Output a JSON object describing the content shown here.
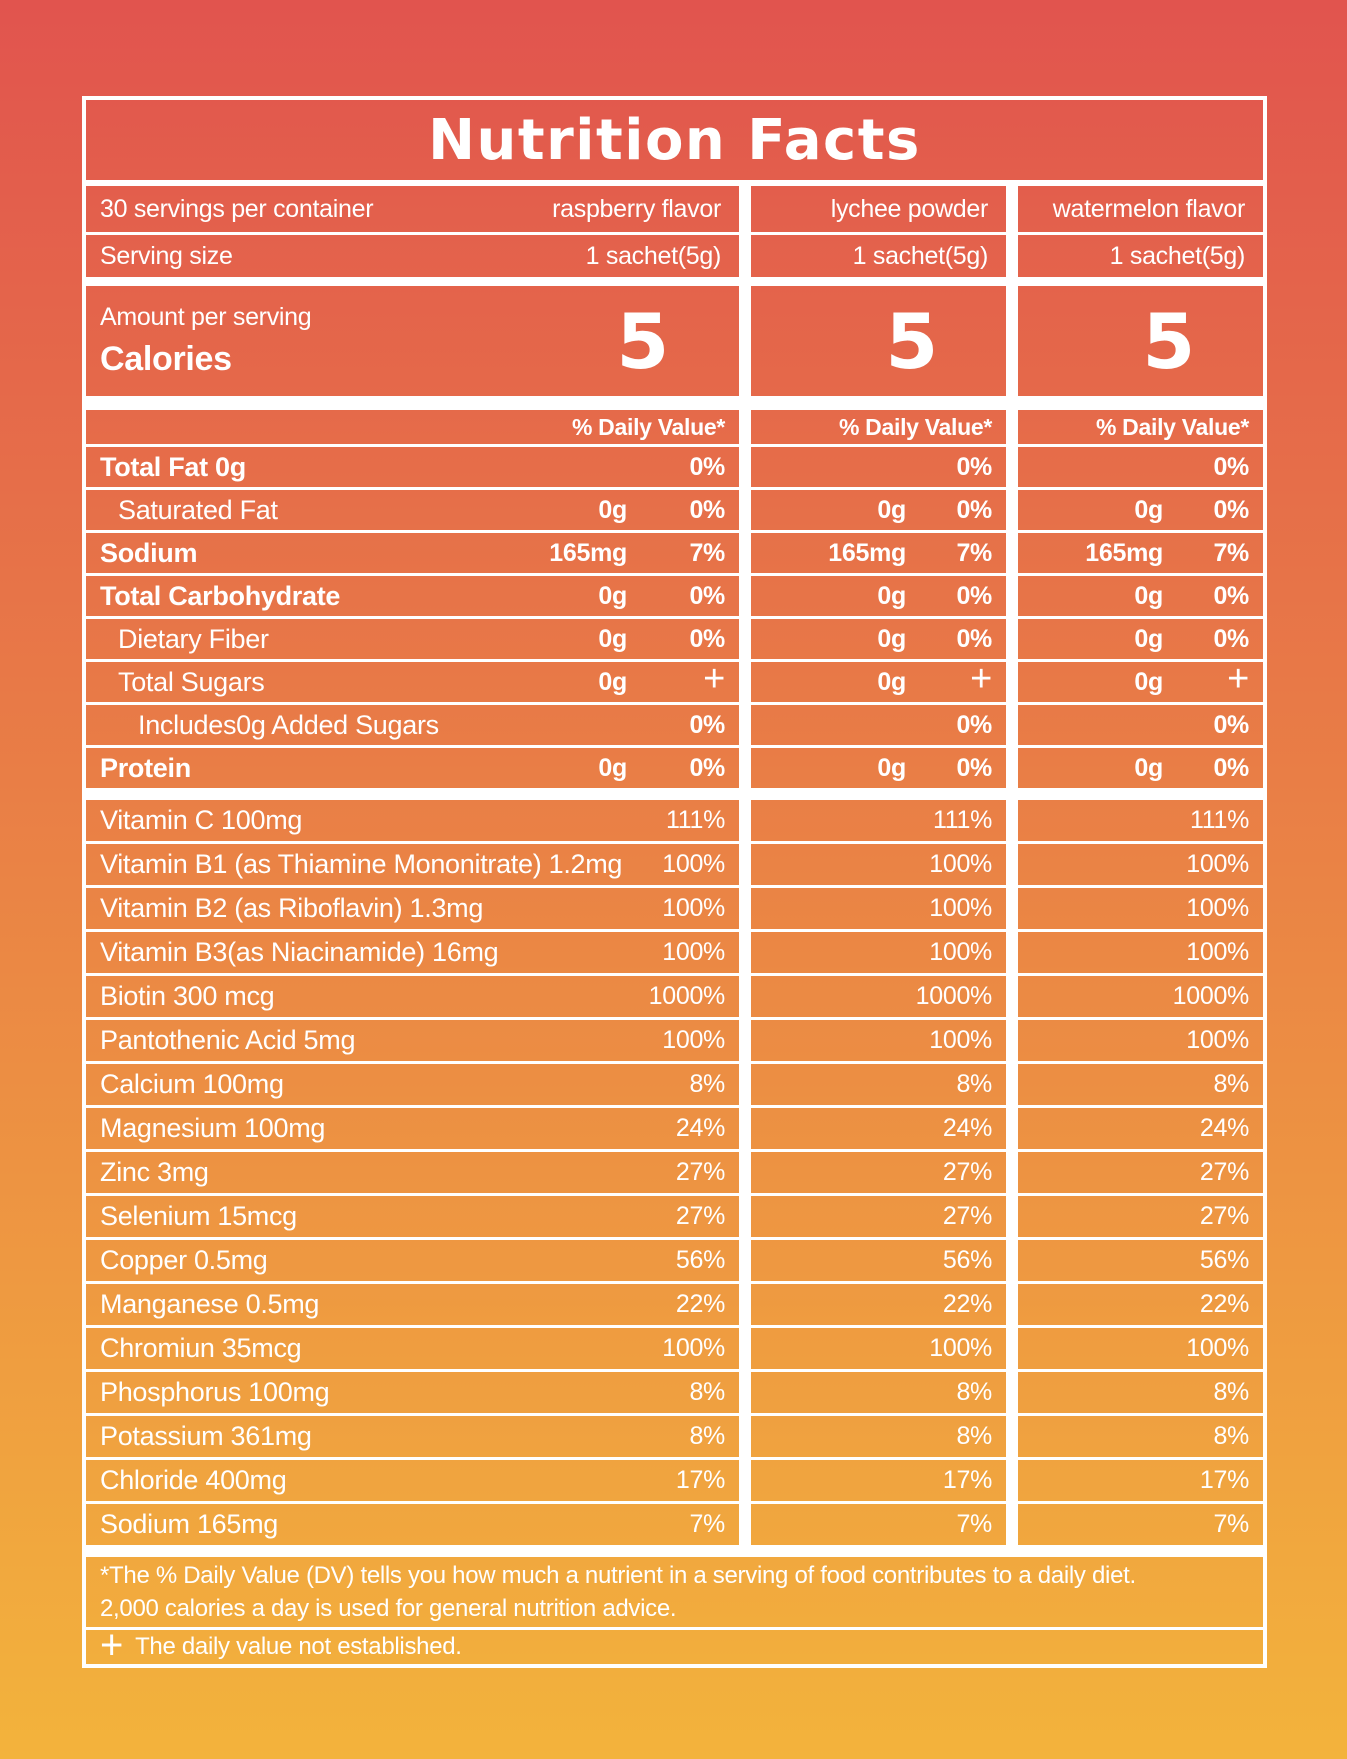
{
  "page": {
    "background_top": "#e1544e",
    "background_bottom": "#f3b33c",
    "text_color": "#ffffff"
  },
  "label": {
    "title": "Nutrition Facts",
    "servings_per_container": "30 servings per container",
    "flavor_columns": [
      "raspberry flavor",
      "lychee powder",
      "watermelon flavor"
    ],
    "serving_size_label": "Serving size",
    "serving_size_values": [
      "1 sachet(5g)",
      "1 sachet(5g)",
      "1 sachet(5g)"
    ],
    "amount_per_serving_label": "Amount per serving",
    "calories_label": "Calories",
    "calories_values": [
      "5",
      "5",
      "5"
    ],
    "daily_value_header": "% Daily Value*",
    "nutrients": [
      {
        "label": "Total Fat 0g",
        "bold": true,
        "indent": 0,
        "amounts": [
          "",
          "",
          ""
        ],
        "percents": [
          "0%",
          "0%",
          "0%"
        ],
        "dagger": false
      },
      {
        "label": "Saturated Fat",
        "bold": false,
        "indent": 1,
        "amounts": [
          "0g",
          "0g",
          "0g"
        ],
        "percents": [
          "0%",
          "0%",
          "0%"
        ],
        "dagger": false
      },
      {
        "label": "Sodium",
        "bold": true,
        "indent": 0,
        "amounts": [
          "165mg",
          "165mg",
          "165mg"
        ],
        "percents": [
          "7%",
          "7%",
          "7%"
        ],
        "dagger": false
      },
      {
        "label": "Total Carbohydrate",
        "bold": true,
        "indent": 0,
        "amounts": [
          "0g",
          "0g",
          "0g"
        ],
        "percents": [
          "0%",
          "0%",
          "0%"
        ],
        "dagger": false
      },
      {
        "label": "Dietary Fiber",
        "bold": false,
        "indent": 1,
        "amounts": [
          "0g",
          "0g",
          "0g"
        ],
        "percents": [
          "0%",
          "0%",
          "0%"
        ],
        "dagger": false
      },
      {
        "label": "Total Sugars",
        "bold": false,
        "indent": 1,
        "amounts": [
          "0g",
          "0g",
          "0g"
        ],
        "percents": [
          "+",
          "+",
          "+"
        ],
        "dagger": true
      },
      {
        "label": "Includes0g Added Sugars",
        "bold": false,
        "indent": 2,
        "amounts": [
          "",
          "",
          ""
        ],
        "percents": [
          "0%",
          "0%",
          "0%"
        ],
        "dagger": false
      },
      {
        "label": "Protein",
        "bold": true,
        "indent": 0,
        "amounts": [
          "0g",
          "0g",
          "0g"
        ],
        "percents": [
          "0%",
          "0%",
          "0%"
        ],
        "dagger": false
      }
    ],
    "micronutrients": [
      {
        "label": "Vitamin C 100mg",
        "percents": [
          "111%",
          "111%",
          "111%"
        ]
      },
      {
        "label": "Vitamin B1 (as Thiamine Mononitrate) 1.2mg",
        "percents": [
          "100%",
          "100%",
          "100%"
        ]
      },
      {
        "label": "Vitamin B2 (as Riboflavin) 1.3mg",
        "percents": [
          "100%",
          "100%",
          "100%"
        ]
      },
      {
        "label": "Vitamin B3(as Niacinamide) 16mg",
        "percents": [
          "100%",
          "100%",
          "100%"
        ]
      },
      {
        "label": "Biotin 300 mcg",
        "percents": [
          "1000%",
          "1000%",
          "1000%"
        ]
      },
      {
        "label": "Pantothenic Acid 5mg",
        "percents": [
          "100%",
          "100%",
          "100%"
        ]
      },
      {
        "label": "Calcium 100mg",
        "percents": [
          "8%",
          "8%",
          "8%"
        ]
      },
      {
        "label": "Magnesium 100mg",
        "percents": [
          "24%",
          "24%",
          "24%"
        ]
      },
      {
        "label": "Zinc 3mg",
        "percents": [
          "27%",
          "27%",
          "27%"
        ]
      },
      {
        "label": "Selenium 15mcg",
        "percents": [
          "27%",
          "27%",
          "27%"
        ]
      },
      {
        "label": "Copper 0.5mg",
        "percents": [
          "56%",
          "56%",
          "56%"
        ]
      },
      {
        "label": "Manganese 0.5mg",
        "percents": [
          "22%",
          "22%",
          "22%"
        ]
      },
      {
        "label": "Chromiun 35mcg",
        "percents": [
          "100%",
          "100%",
          "100%"
        ]
      },
      {
        "label": "Phosphorus 100mg",
        "percents": [
          "8%",
          "8%",
          "8%"
        ]
      },
      {
        "label": "Potassium 361mg",
        "percents": [
          "8%",
          "8%",
          "8%"
        ]
      },
      {
        "label": "Chloride 400mg",
        "percents": [
          "17%",
          "17%",
          "17%"
        ]
      },
      {
        "label": "Sodium 165mg",
        "percents": [
          "7%",
          "7%",
          "7%"
        ]
      }
    ],
    "footnote_line1": "*The % Daily Value (DV) tells you how much a nutrient in a serving of food contributes to a daily diet.",
    "footnote_line2": "2,000 calories a day is used for general nutrition advice.",
    "dagger_symbol": "+",
    "dagger_note": "The daily value not established."
  }
}
